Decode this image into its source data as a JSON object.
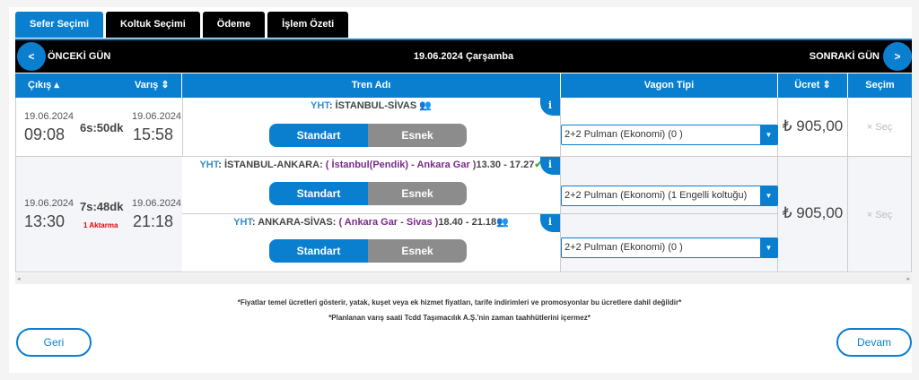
{
  "tabs": [
    "Sefer Seçimi",
    "Koltuk Seçimi",
    "Ödeme",
    "İşlem Özeti"
  ],
  "daybar": {
    "prev": "ÖNCEKİ GÜN",
    "date": "19.06.2024 Çarşamba",
    "next": "SONRAKİ GÜN",
    "prev_icon": "<",
    "next_icon": ">"
  },
  "headers": {
    "departure": "Çıkış",
    "arrival": "Varış",
    "train": "Tren Adı",
    "wagon": "Vagon Tipi",
    "price": "Ücret",
    "select": "Seçim"
  },
  "rows": [
    {
      "dep_date": "19.06.2024",
      "dep_time": "09:08",
      "duration": "6s:50dk",
      "arr_date": "19.06.2024",
      "arr_time": "15:58",
      "transfer": "",
      "legs": [
        {
          "prefix": "YHT",
          "name": "İSTANBUL-SİVAS",
          "stations": "",
          "times": "",
          "wagon": "2+2 Pulman (Ekonomi) (0 )",
          "standard": "Standart",
          "flex": "Esnek"
        }
      ],
      "price": "₺ 905,00",
      "select": "Seç"
    },
    {
      "dep_date": "19.06.2024",
      "dep_time": "13:30",
      "duration": "7s:48dk",
      "arr_date": "19.06.2024",
      "arr_time": "21:18",
      "transfer": "1 Aktarma",
      "legs": [
        {
          "prefix": "YHT",
          "name": "İSTANBUL-ANKARA:",
          "stations": "( İstanbul(Pendik) - Ankara Gar )",
          "times": "13.30 - 17.27",
          "wagon": "2+2 Pulman (Ekonomi) (1 Engelli koltuğu)",
          "standard": "Standart",
          "flex": "Esnek"
        },
        {
          "prefix": "YHT",
          "name": "ANKARA-SİVAS:",
          "stations": "( Ankara Gar - Sivas )",
          "times": "18.40 - 21.18",
          "wagon": "2+2 Pulman (Ekonomi) (0 )",
          "standard": "Standart",
          "flex": "Esnek"
        }
      ],
      "price": "₺ 905,00",
      "select": "Seç"
    }
  ],
  "notes": [
    "*Fiyatlar temel ücretleri gösterir, yatak, kuşet veya ek hizmet fiyatları, tarife indirimleri ve promosyonlar bu ücretlere dahil değildir*",
    "*Planlanan varış saati Tcdd Taşımacılık A.Ş.'nin zaman taahhütlerini içermez*"
  ],
  "buttons": {
    "back": "Geri",
    "next": "Devam"
  },
  "colors": {
    "accent": "#0a7fd0",
    "bar": "#000000"
  }
}
